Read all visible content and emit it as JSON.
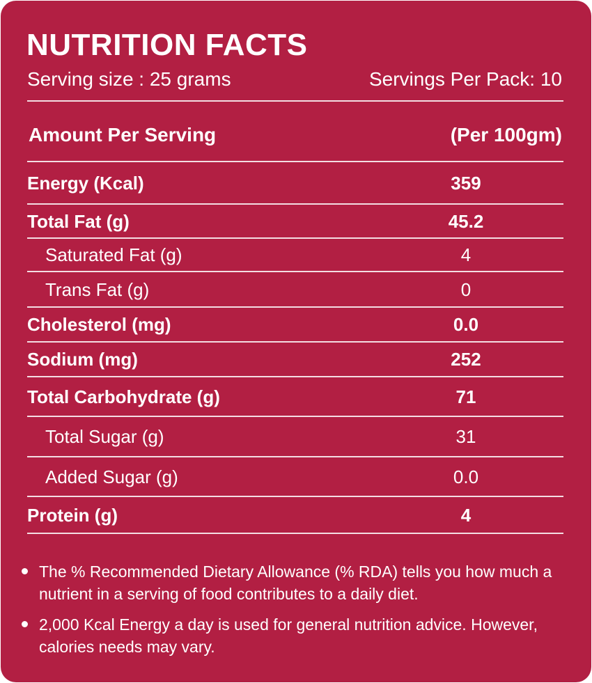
{
  "title": "NUTRITION FACTS",
  "serving_size": "Serving size : 25 grams",
  "servings_per_pack": "Servings Per Pack: 10",
  "header": {
    "left": "Amount Per Serving",
    "right": "(Per 100gm)"
  },
  "rows": [
    {
      "label": "Energy (Kcal)",
      "value": "359",
      "bold": true,
      "indent": false
    },
    {
      "label": "Total Fat (g)",
      "value": "45.2",
      "bold": true,
      "indent": false
    },
    {
      "label": "Saturated Fat (g)",
      "value": "4",
      "bold": false,
      "indent": true
    },
    {
      "label": "Trans Fat (g)",
      "value": "0",
      "bold": false,
      "indent": true
    },
    {
      "label": "Cholesterol (mg)",
      "value": "0.0",
      "bold": true,
      "indent": false
    },
    {
      "label": "Sodium  (mg)",
      "value": "252",
      "bold": true,
      "indent": false
    },
    {
      "label": "Total Carbohydrate (g)",
      "value": "71",
      "bold": true,
      "indent": false
    },
    {
      "label": "Total Sugar (g)",
      "value": "31",
      "bold": false,
      "indent": true
    },
    {
      "label": "Added Sugar (g)",
      "value": "0.0",
      "bold": false,
      "indent": true
    },
    {
      "label": "Protein (g)",
      "value": "4",
      "bold": true,
      "indent": false
    }
  ],
  "notes": [
    "The % Recommended Dietary Allowance (% RDA) tells you how much a nutrient in a serving of food contributes to a daily diet.",
    "2,000 Kcal Energy a day is used for general nutrition advice. However, calories needs may vary."
  ],
  "colors": {
    "background": "#b21f43",
    "text": "#ffffff"
  }
}
